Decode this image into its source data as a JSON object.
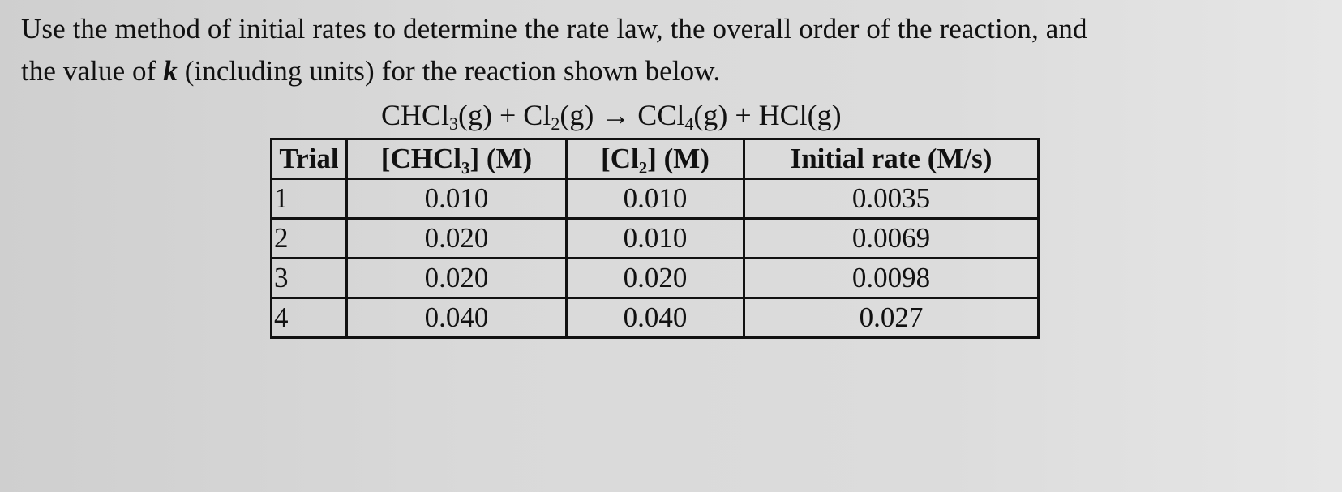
{
  "prompt": {
    "line1": "Use the method of initial rates to determine the rate law, the overall order of the reaction, and",
    "line2_pre": "the value of ",
    "line2_k": "k",
    "line2_post": " (including units) for the reaction shown below."
  },
  "equation": {
    "r1": "CHCl",
    "r1_sub": "3",
    "r1_state": "(g) + Cl",
    "r2_sub": "2",
    "r2_state": "(g) → CCl",
    "p1_sub": "4",
    "p1_state": "(g) + HCl(g)"
  },
  "table": {
    "headers": {
      "trial": "Trial",
      "chcl3": "[CHCl₃] (M)",
      "cl2": "[Cl₂] (M)",
      "rate": "Initial rate (M/s)"
    },
    "rows": [
      {
        "trial": "1",
        "chcl3": "0.010",
        "cl2": "0.010",
        "rate": "0.0035"
      },
      {
        "trial": "2",
        "chcl3": "0.020",
        "cl2": "0.010",
        "rate": "0.0069"
      },
      {
        "trial": "3",
        "chcl3": "0.020",
        "cl2": "0.020",
        "rate": "0.0098"
      },
      {
        "trial": "4",
        "chcl3": "0.040",
        "cl2": "0.040",
        "rate": "0.027"
      }
    ]
  }
}
